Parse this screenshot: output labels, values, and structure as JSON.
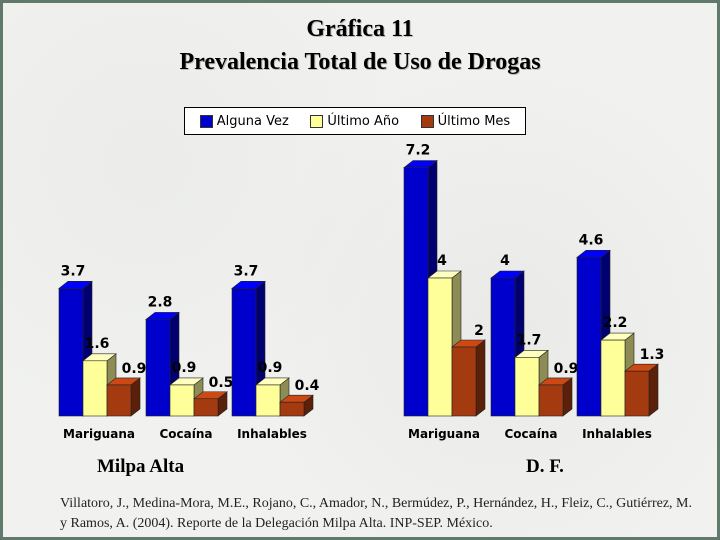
{
  "title_line1": "Gráfica 11",
  "title_line2": "Prevalencia Total de Uso de Drogas",
  "legend": [
    {
      "label": "Alguna Vez",
      "color": "#0000cc"
    },
    {
      "label": "Último Año",
      "color": "#ffff99"
    },
    {
      "label": "Último Mes",
      "color": "#a33a10"
    }
  ],
  "chart_data": [
    {
      "type": "bar",
      "group_label": "Milpa Alta",
      "categories": [
        "Mariguana",
        "Cocaína",
        "Inhalables"
      ],
      "series": [
        {
          "name": "Alguna Vez",
          "values": [
            3.7,
            2.8,
            3.7
          ]
        },
        {
          "name": "Último Año",
          "values": [
            1.6,
            0.9,
            0.9
          ]
        },
        {
          "name": "Último Mes",
          "values": [
            0.9,
            0.5,
            0.4
          ]
        }
      ]
    },
    {
      "type": "bar",
      "group_label": "D. F.",
      "categories": [
        "Mariguana",
        "Cocaína",
        "Inhalables"
      ],
      "series": [
        {
          "name": "Alguna Vez",
          "values": [
            7.2,
            4,
            4.6
          ]
        },
        {
          "name": "Último Año",
          "values": [
            4,
            1.7,
            2.2
          ]
        },
        {
          "name": "Último Mes",
          "values": [
            2,
            0.9,
            1.3
          ]
        }
      ]
    }
  ],
  "citation": "Villatoro, J., Medina-Mora, M.E., Rojano, C., Amador, N., Bermúdez, P., Hernández, H., Fleiz, C., Gutiérrez, M. y Ramos, A. (2004). Reporte de la Delegación Milpa Alta. INP-SEP. México."
}
